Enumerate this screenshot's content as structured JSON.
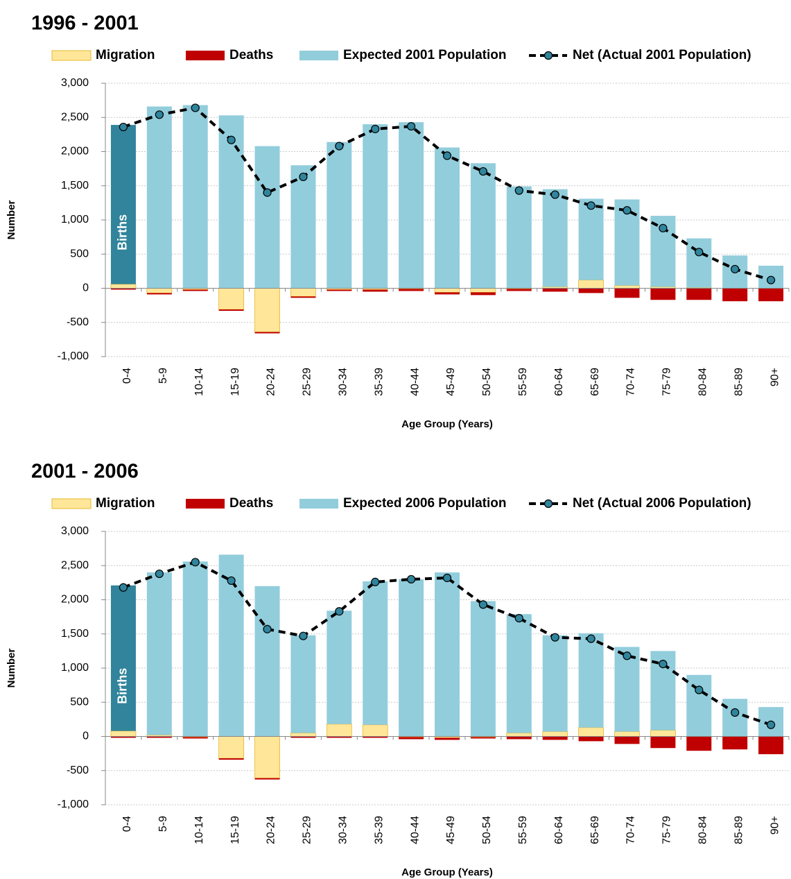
{
  "chart_data": [
    {
      "type": "bar",
      "title": "1996 - 2001",
      "x_label": "Age Group (Years)",
      "y_label": "Number",
      "categories": [
        "0-4",
        "5-9",
        "10-14",
        "15-19",
        "20-24",
        "25-29",
        "30-34",
        "35-39",
        "40-44",
        "45-49",
        "50-54",
        "55-59",
        "60-64",
        "65-69",
        "70-74",
        "75-79",
        "80-84",
        "85-89",
        "90+"
      ],
      "series": [
        {
          "name": "Migration",
          "color": "#ffe699",
          "values": [
            60,
            -70,
            -20,
            -310,
            -640,
            -120,
            -20,
            -20,
            -10,
            -60,
            -60,
            -10,
            20,
            120,
            40,
            20,
            10,
            0,
            0
          ]
        },
        {
          "name": "Deaths",
          "color": "#c00000",
          "values": [
            -20,
            -20,
            -20,
            -20,
            -20,
            -20,
            -20,
            -30,
            -30,
            -30,
            -40,
            -30,
            -50,
            -70,
            -140,
            -170,
            -170,
            -190,
            -190
          ]
        },
        {
          "name": "Expected 2001 Population",
          "color": "#92cddc",
          "values": [
            2330,
            2660,
            2680,
            2530,
            2080,
            1800,
            2140,
            2400,
            2430,
            2060,
            1830,
            1490,
            1430,
            1190,
            1260,
            1040,
            720,
            480,
            330
          ]
        },
        {
          "name": "Net (Actual 2001 Population)",
          "type": "line",
          "color": "#000000",
          "marker_color": "#31849b",
          "values": [
            2360,
            2540,
            2640,
            2170,
            1400,
            1630,
            2080,
            2330,
            2370,
            1940,
            1710,
            1430,
            1370,
            1210,
            1140,
            880,
            530,
            280,
            120
          ]
        }
      ],
      "annotation": {
        "text": "Births",
        "color": "#31849b"
      },
      "ylim": [
        -1000,
        3000
      ],
      "yticks": [
        {
          "value": -1000,
          "label": "-1,000"
        },
        -500,
        0,
        500,
        {
          "value": 1000,
          "label": "1,000"
        },
        {
          "value": 1500,
          "label": "1,500"
        },
        {
          "value": 2000,
          "label": "2,000"
        },
        {
          "value": 2500,
          "label": "2,500"
        },
        {
          "value": 3000,
          "label": "3,000"
        }
      ],
      "grid": true
    },
    {
      "type": "bar",
      "title": "2001 - 2006",
      "x_label": "Age Group (Years)",
      "y_label": "Number",
      "categories": [
        "0-4",
        "5-9",
        "10-14",
        "15-19",
        "20-24",
        "25-29",
        "30-34",
        "35-39",
        "40-44",
        "45-49",
        "50-54",
        "55-59",
        "60-64",
        "65-69",
        "70-74",
        "75-79",
        "80-84",
        "85-89",
        "90+"
      ],
      "series": [
        {
          "name": "Migration",
          "color": "#ffe699",
          "values": [
            80,
            20,
            -10,
            -320,
            -610,
            50,
            180,
            170,
            -10,
            -20,
            -10,
            50,
            70,
            130,
            70,
            90,
            0,
            0,
            0
          ]
        },
        {
          "name": "Deaths",
          "color": "#c00000",
          "values": [
            -20,
            -20,
            -20,
            -20,
            -20,
            -20,
            -20,
            -20,
            -30,
            -30,
            -20,
            -40,
            -50,
            -70,
            -110,
            -170,
            -210,
            -190,
            -260
          ]
        },
        {
          "name": "Expected 2006 Population",
          "color": "#92cddc",
          "values": [
            2130,
            2380,
            2560,
            2660,
            2200,
            1430,
            1660,
            2100,
            2300,
            2400,
            1980,
            1740,
            1410,
            1380,
            1240,
            1160,
            900,
            550,
            430
          ]
        },
        {
          "name": "Net (Actual 2006 Population)",
          "type": "line",
          "color": "#000000",
          "marker_color": "#31849b",
          "values": [
            2180,
            2380,
            2550,
            2280,
            1570,
            1470,
            1830,
            2260,
            2300,
            2320,
            1930,
            1730,
            1450,
            1430,
            1180,
            1060,
            680,
            350,
            170
          ]
        }
      ],
      "annotation": {
        "text": "Births",
        "color": "#31849b"
      },
      "ylim": [
        -1000,
        3000
      ],
      "yticks": [
        {
          "value": -1000,
          "label": "-1,000"
        },
        -500,
        0,
        500,
        {
          "value": 1000,
          "label": "1,000"
        },
        {
          "value": 1500,
          "label": "1,500"
        },
        {
          "value": 2000,
          "label": "2,000"
        },
        {
          "value": 2500,
          "label": "2,500"
        },
        {
          "value": 3000,
          "label": "3,000"
        }
      ],
      "grid": true
    }
  ]
}
